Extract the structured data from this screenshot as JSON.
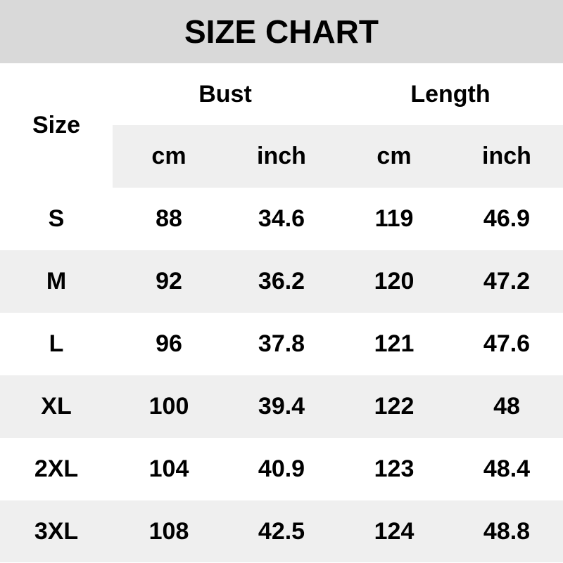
{
  "title": "SIZE CHART",
  "header": {
    "size_label": "Size",
    "groups": [
      "Bust",
      "Length"
    ],
    "units": [
      "cm",
      "inch",
      "cm",
      "inch"
    ]
  },
  "rows": [
    {
      "size": "S",
      "values": [
        "88",
        "34.6",
        "119",
        "46.9"
      ]
    },
    {
      "size": "M",
      "values": [
        "92",
        "36.2",
        "120",
        "47.2"
      ]
    },
    {
      "size": "L",
      "values": [
        "96",
        "37.8",
        "121",
        "47.6"
      ]
    },
    {
      "size": "XL",
      "values": [
        "100",
        "39.4",
        "122",
        "48"
      ]
    },
    {
      "size": "2XL",
      "values": [
        "104",
        "40.9",
        "123",
        "48.4"
      ]
    },
    {
      "size": "3XL",
      "values": [
        "108",
        "42.5",
        "124",
        "48.8"
      ]
    }
  ],
  "colors": {
    "title_bg": "#d9d9d9",
    "stripe_bg": "#efefef",
    "text": "#000000"
  }
}
